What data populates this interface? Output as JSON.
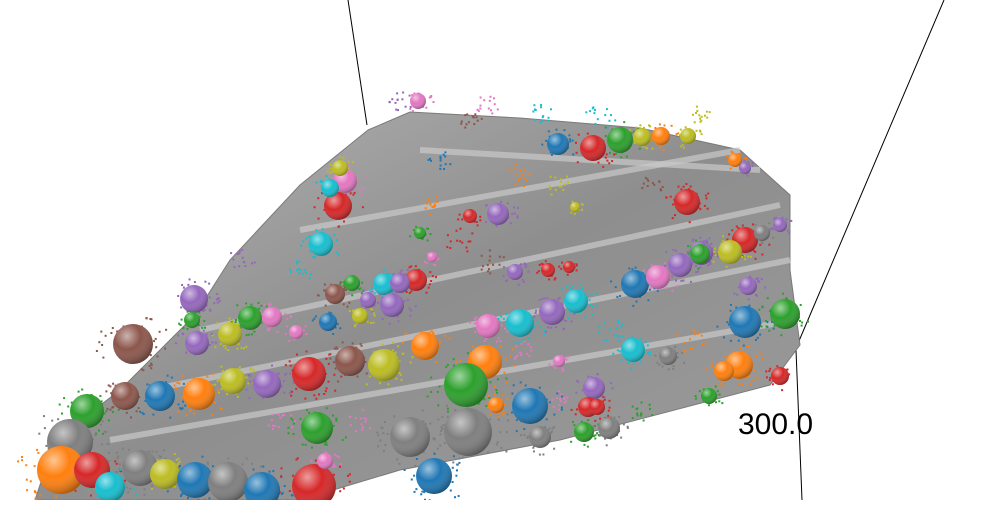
{
  "scene": {
    "axis_tick_label": "300.0",
    "terrain_color": "#8e8e8e",
    "cluster_palette": [
      "#1f77b4",
      "#ff7f0e",
      "#2ca02c",
      "#d62728",
      "#9467bd",
      "#8c564b",
      "#e377c2",
      "#7f7f7f",
      "#bcbd22",
      "#17becf"
    ]
  }
}
